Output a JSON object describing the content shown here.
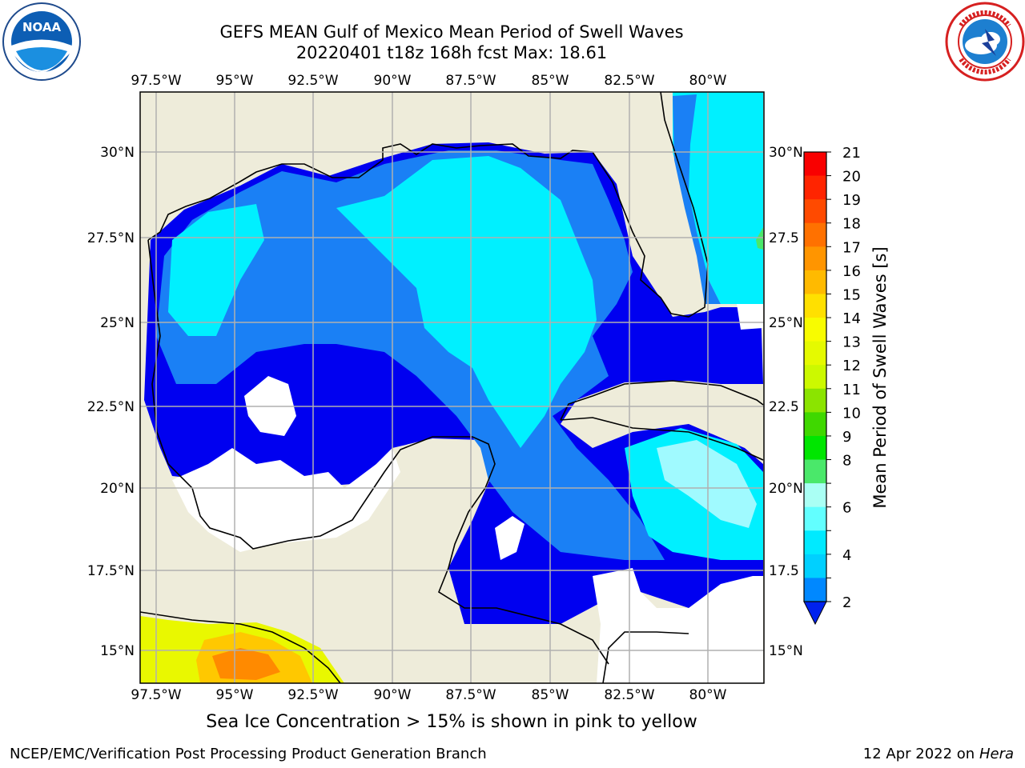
{
  "header": {
    "title_line1": "GEFS MEAN Gulf of Mexico Mean Period of Swell Waves",
    "title_line2": "20220401 t18z 168h fcst   Max: 18.61"
  },
  "logos": {
    "noaa": {
      "name": "noaa-logo",
      "text": "NOAA"
    },
    "nws": {
      "name": "national-weather-service-logo"
    }
  },
  "map": {
    "lon_ticks": [
      "97.5°W",
      "95°W",
      "92.5°W",
      "90°W",
      "87.5°W",
      "85°W",
      "82.5°W",
      "80°W"
    ],
    "lat_ticks_left": [
      "30°N",
      "27.5°N",
      "25°N",
      "22.5°N",
      "20°N",
      "17.5°N",
      "15°N"
    ],
    "lat_ticks_right": [
      "30°N",
      "27.5",
      "25°N",
      "22.5",
      "20°N",
      "17.5",
      "15°N"
    ],
    "colors": {
      "land": "#eeecda",
      "nodata": "#ffffff",
      "swell_2_4": "#0000f0",
      "swell_4_6": "#1a80f5",
      "swell_6_8": "#00f0ff",
      "swell_8_9": "#a0faff",
      "grid": "#b0b0b0"
    }
  },
  "colorbar": {
    "label": "Mean Period of Swell Waves [s]",
    "ticks": [
      "21",
      "20",
      "19",
      "18",
      "17",
      "16",
      "15",
      "14",
      "13",
      "12",
      "11",
      "10",
      "9",
      "8",
      "7",
      "6",
      "5",
      "4",
      "3",
      "2"
    ],
    "visible_ticks": [
      "21",
      "20",
      "19",
      "18",
      "17",
      "16",
      "15",
      "14",
      "13",
      "12",
      "11",
      "10",
      "9",
      "8",
      "6",
      "4",
      "2"
    ],
    "bands": [
      "#f90000",
      "#ff2400",
      "#ff4a00",
      "#ff7100",
      "#ff9500",
      "#ffba00",
      "#ffe000",
      "#f8fc00",
      "#e5fa00",
      "#ccf900",
      "#8be400",
      "#3fd800",
      "#00e600",
      "#4ae86a",
      "#aafff4",
      "#62ffff",
      "#00eaff",
      "#00d0ff",
      "#0088ff",
      "#2a5dff"
    ],
    "extend_color": "#0022ee"
  },
  "footer": {
    "ice_note": "Sea Ice Concentration > 15% is shown in pink to yellow",
    "credit_left": "NCEP/EMC/Verification Post Processing Product Generation Branch",
    "credit_date": "12 Apr 2022 on ",
    "credit_host": "Hera"
  }
}
